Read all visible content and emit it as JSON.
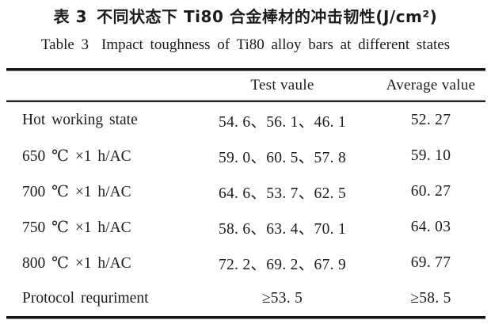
{
  "title_cn": {
    "label": "表 3",
    "text": "不同状态下 Ti80 合金棒材的冲击韧性(J/cm²)"
  },
  "title_en": {
    "label": "Table 3",
    "text": "Impact toughness of Ti80 alloy bars at different states"
  },
  "table": {
    "columns": [
      "",
      "Test vaule",
      "Average value"
    ],
    "rows": [
      {
        "state": "Hot working state",
        "test_values": "54. 6、56. 1、46. 1",
        "average": "52. 27"
      },
      {
        "state": "650 ℃ ×1 h/AC",
        "test_values": "59. 0、60. 5、57. 8",
        "average": "59. 10"
      },
      {
        "state": "700 ℃ ×1 h/AC",
        "test_values": "64. 6、53. 7、62. 5",
        "average": "60. 27"
      },
      {
        "state": "750 ℃ ×1 h/AC",
        "test_values": "58. 6、63. 4、70. 1",
        "average": "64. 03"
      },
      {
        "state": "800 ℃ ×1 h/AC",
        "test_values": "72. 2、69. 2、67. 9",
        "average": "69. 77"
      },
      {
        "state": "Protocol requriment",
        "test_values": "≥53. 5",
        "average": "≥58. 5"
      }
    ]
  },
  "colors": {
    "background": "#ffffff",
    "text": "#1c1c1c",
    "rule": "#141414"
  }
}
